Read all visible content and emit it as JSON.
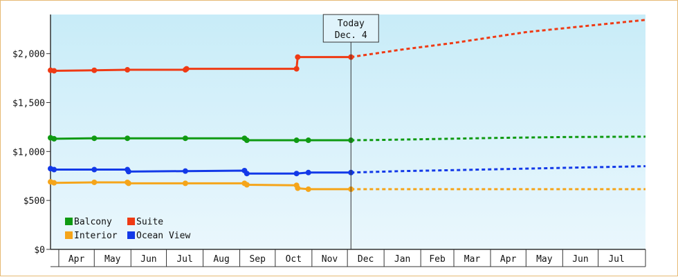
{
  "chart_data": {
    "type": "line",
    "title": "",
    "xlabel": "",
    "ylabel": "",
    "ylim": [
      0,
      2400
    ],
    "y_ticks": [
      0,
      500,
      1000,
      1500,
      2000
    ],
    "y_tick_labels": [
      "$0",
      "$500",
      "$1,000",
      "$1,500",
      "$2,000"
    ],
    "x_range": [
      "2013-03-25",
      "2014-08-10"
    ],
    "month_labels": [
      {
        "label": "Apr",
        "start": "2013-04-01",
        "end": "2013-05-01"
      },
      {
        "label": "May",
        "start": "2013-05-01",
        "end": "2013-06-01"
      },
      {
        "label": "Jun",
        "start": "2013-06-01",
        "end": "2013-07-01"
      },
      {
        "label": "Jul",
        "start": "2013-07-01",
        "end": "2013-08-01"
      },
      {
        "label": "Aug",
        "start": "2013-08-01",
        "end": "2013-09-01"
      },
      {
        "label": "Sep",
        "start": "2013-09-01",
        "end": "2013-10-01"
      },
      {
        "label": "Oct",
        "start": "2013-10-01",
        "end": "2013-11-01"
      },
      {
        "label": "Nov",
        "start": "2013-11-01",
        "end": "2013-12-01"
      },
      {
        "label": "Dec",
        "start": "2013-12-01",
        "end": "2014-01-01"
      },
      {
        "label": "Jan",
        "start": "2014-01-01",
        "end": "2014-02-01"
      },
      {
        "label": "Feb",
        "start": "2014-02-01",
        "end": "2014-03-01"
      },
      {
        "label": "Mar",
        "start": "2014-03-01",
        "end": "2014-04-01"
      },
      {
        "label": "Apr",
        "start": "2014-04-01",
        "end": "2014-05-01"
      },
      {
        "label": "May",
        "start": "2014-05-01",
        "end": "2014-06-01"
      },
      {
        "label": "Jun",
        "start": "2014-06-01",
        "end": "2014-07-01"
      },
      {
        "label": "Jul",
        "start": "2014-07-01",
        "end": "2014-08-01"
      }
    ],
    "today": {
      "line1": "Today",
      "line2": "Dec. 4",
      "date": "2013-12-04"
    },
    "legend": {
      "placement": "bottom-left"
    },
    "colors": {
      "bg_top": "#c8ecf8",
      "bg_bottom": "#eaf7fd",
      "frame": "#e6b973"
    },
    "series": [
      {
        "name": "Balcony",
        "color": "#0f9a12",
        "points": [
          {
            "d": "2013-03-25",
            "v": 1140
          },
          {
            "d": "2013-03-28",
            "v": 1130
          },
          {
            "d": "2013-05-01",
            "v": 1135
          },
          {
            "d": "2013-05-29",
            "v": 1135
          },
          {
            "d": "2013-07-17",
            "v": 1135
          },
          {
            "d": "2013-09-05",
            "v": 1135
          },
          {
            "d": "2013-09-07",
            "v": 1115
          },
          {
            "d": "2013-10-19",
            "v": 1115
          },
          {
            "d": "2013-10-29",
            "v": 1115
          },
          {
            "d": "2013-12-04",
            "v": 1115
          }
        ],
        "forecast": [
          {
            "d": "2013-12-04",
            "v": 1115
          },
          {
            "d": "2013-12-28",
            "v": 1118
          },
          {
            "d": "2014-02-01",
            "v": 1125
          },
          {
            "d": "2014-04-01",
            "v": 1138
          },
          {
            "d": "2014-06-01",
            "v": 1148
          },
          {
            "d": "2014-08-10",
            "v": 1152
          }
        ]
      },
      {
        "name": "Suite",
        "color": "#ef3a14",
        "points": [
          {
            "d": "2013-03-25",
            "v": 1830
          },
          {
            "d": "2013-03-28",
            "v": 1825
          },
          {
            "d": "2013-05-01",
            "v": 1830
          },
          {
            "d": "2013-05-29",
            "v": 1835
          },
          {
            "d": "2013-07-17",
            "v": 1835
          },
          {
            "d": "2013-07-18",
            "v": 1845
          },
          {
            "d": "2013-10-19",
            "v": 1845
          },
          {
            "d": "2013-10-20",
            "v": 1965
          },
          {
            "d": "2013-12-04",
            "v": 1965
          }
        ],
        "forecast": [
          {
            "d": "2013-12-04",
            "v": 1965
          },
          {
            "d": "2014-01-15",
            "v": 2040
          },
          {
            "d": "2014-03-01",
            "v": 2110
          },
          {
            "d": "2014-05-01",
            "v": 2220
          },
          {
            "d": "2014-08-10",
            "v": 2345
          }
        ]
      },
      {
        "name": "Interior",
        "color": "#f5a51a",
        "points": [
          {
            "d": "2013-03-25",
            "v": 690
          },
          {
            "d": "2013-03-28",
            "v": 680
          },
          {
            "d": "2013-05-01",
            "v": 685
          },
          {
            "d": "2013-05-29",
            "v": 685
          },
          {
            "d": "2013-05-30",
            "v": 675
          },
          {
            "d": "2013-07-17",
            "v": 675
          },
          {
            "d": "2013-09-05",
            "v": 675
          },
          {
            "d": "2013-09-07",
            "v": 660
          },
          {
            "d": "2013-10-19",
            "v": 655
          },
          {
            "d": "2013-10-20",
            "v": 625
          },
          {
            "d": "2013-10-29",
            "v": 615
          },
          {
            "d": "2013-12-04",
            "v": 615
          }
        ],
        "forecast": [
          {
            "d": "2013-12-04",
            "v": 615
          },
          {
            "d": "2014-08-10",
            "v": 615
          }
        ]
      },
      {
        "name": "Ocean View",
        "color": "#1239e8",
        "points": [
          {
            "d": "2013-03-25",
            "v": 825
          },
          {
            "d": "2013-03-28",
            "v": 815
          },
          {
            "d": "2013-05-01",
            "v": 815
          },
          {
            "d": "2013-05-29",
            "v": 815
          },
          {
            "d": "2013-05-30",
            "v": 795
          },
          {
            "d": "2013-07-17",
            "v": 800
          },
          {
            "d": "2013-09-05",
            "v": 805
          },
          {
            "d": "2013-09-07",
            "v": 775
          },
          {
            "d": "2013-10-19",
            "v": 775
          },
          {
            "d": "2013-10-29",
            "v": 785
          },
          {
            "d": "2013-12-04",
            "v": 785
          }
        ],
        "forecast": [
          {
            "d": "2013-12-04",
            "v": 785
          },
          {
            "d": "2014-01-15",
            "v": 800
          },
          {
            "d": "2014-03-01",
            "v": 810
          },
          {
            "d": "2014-05-01",
            "v": 825
          },
          {
            "d": "2014-08-10",
            "v": 850
          }
        ]
      }
    ]
  }
}
